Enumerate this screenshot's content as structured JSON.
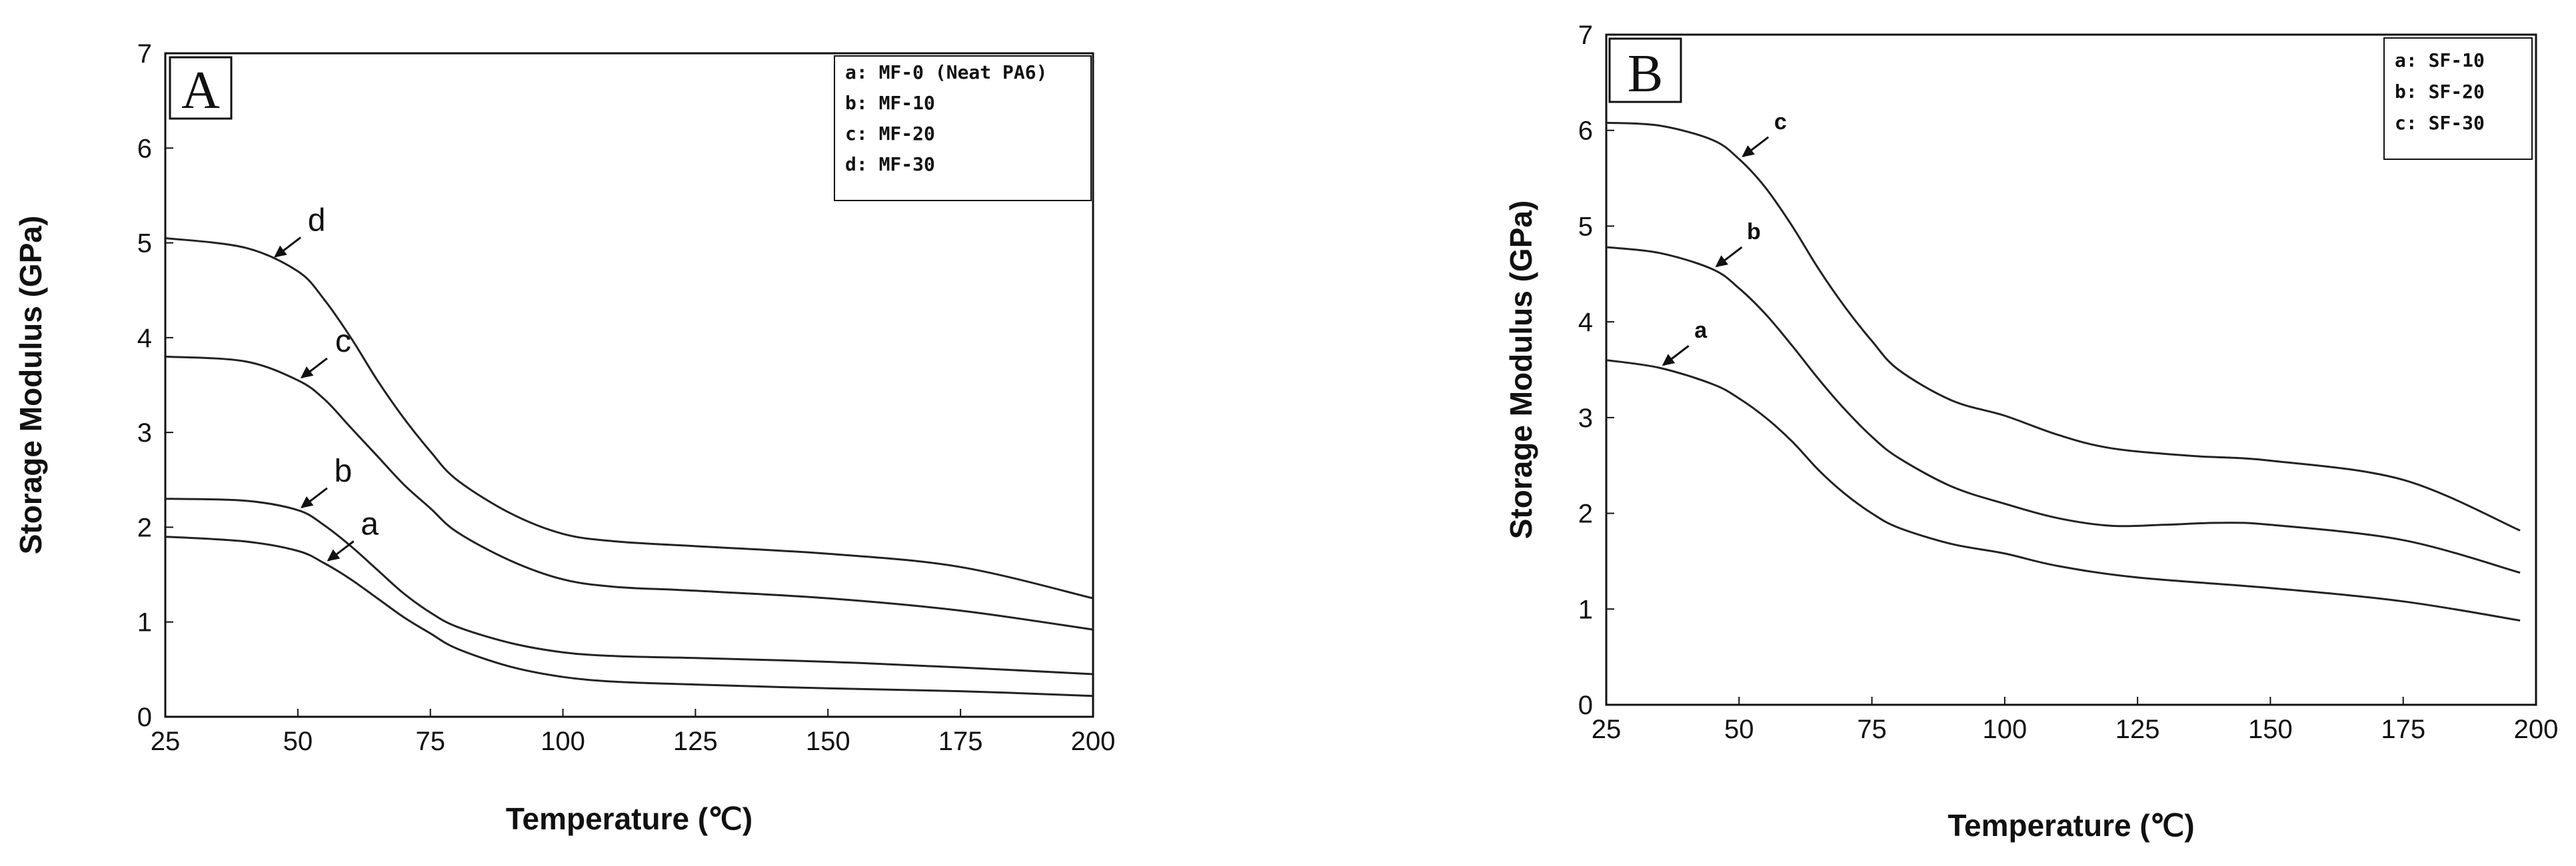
{
  "chart_data": [
    {
      "type": "line",
      "panel_label": "A",
      "xlabel": "Temperature (℃)",
      "ylabel": "Storage Modulus (GPa)",
      "xlim": [
        25,
        200
      ],
      "ylim": [
        0,
        7
      ],
      "xticks": [
        25,
        50,
        75,
        100,
        125,
        150,
        175,
        200
      ],
      "yticks": [
        0,
        1,
        2,
        3,
        4,
        5,
        6,
        7
      ],
      "legend": [
        "a: MF-0 (Neat PA6)",
        "b: MF-10",
        "c: MF-20",
        "d: MF-30"
      ],
      "legend_position": "top-right",
      "grid": false,
      "series": [
        {
          "name": "a",
          "x": [
            25,
            40,
            50,
            55,
            60,
            65,
            70,
            75,
            80,
            90,
            100,
            110,
            125,
            150,
            175,
            200
          ],
          "y": [
            1.9,
            1.85,
            1.75,
            1.62,
            1.45,
            1.25,
            1.05,
            0.88,
            0.72,
            0.53,
            0.42,
            0.37,
            0.34,
            0.3,
            0.27,
            0.22
          ]
        },
        {
          "name": "b",
          "x": [
            25,
            40,
            50,
            55,
            60,
            65,
            70,
            75,
            80,
            90,
            100,
            110,
            125,
            150,
            175,
            200
          ],
          "y": [
            2.3,
            2.28,
            2.18,
            2.02,
            1.8,
            1.55,
            1.3,
            1.1,
            0.95,
            0.78,
            0.68,
            0.64,
            0.62,
            0.58,
            0.52,
            0.45
          ]
        },
        {
          "name": "c",
          "x": [
            25,
            40,
            50,
            55,
            60,
            65,
            70,
            75,
            80,
            90,
            100,
            110,
            125,
            150,
            175,
            200
          ],
          "y": [
            3.8,
            3.75,
            3.55,
            3.35,
            3.05,
            2.75,
            2.45,
            2.2,
            1.95,
            1.65,
            1.45,
            1.37,
            1.33,
            1.25,
            1.12,
            0.92
          ]
        },
        {
          "name": "d",
          "x": [
            25,
            40,
            50,
            55,
            60,
            65,
            70,
            75,
            80,
            90,
            100,
            110,
            125,
            150,
            175,
            200
          ],
          "y": [
            5.05,
            4.95,
            4.7,
            4.4,
            4.0,
            3.55,
            3.15,
            2.8,
            2.5,
            2.15,
            1.93,
            1.85,
            1.8,
            1.72,
            1.58,
            1.25
          ]
        }
      ],
      "annotations": [
        {
          "text": "a",
          "series": "a",
          "at_x": 55
        },
        {
          "text": "b",
          "series": "b",
          "at_x": 50
        },
        {
          "text": "c",
          "series": "c",
          "at_x": 50
        },
        {
          "text": "d",
          "series": "d",
          "at_x": 45
        }
      ]
    },
    {
      "type": "line",
      "panel_label": "B",
      "xlabel": "Temperature (℃)",
      "ylabel": "Storage Modulus (GPa)",
      "xlim": [
        25,
        200
      ],
      "ylim": [
        0,
        7
      ],
      "xticks": [
        25,
        50,
        75,
        100,
        125,
        150,
        175,
        200
      ],
      "yticks": [
        0,
        1,
        2,
        3,
        4,
        5,
        6,
        7
      ],
      "legend": [
        "a: SF-10",
        "b: SF-20",
        "c: SF-30"
      ],
      "legend_position": "top-right",
      "grid": false,
      "series": [
        {
          "name": "a",
          "x": [
            25,
            35,
            45,
            50,
            55,
            60,
            65,
            70,
            75,
            80,
            90,
            100,
            110,
            125,
            150,
            175,
            197
          ],
          "y": [
            3.6,
            3.52,
            3.35,
            3.2,
            3.0,
            2.75,
            2.45,
            2.2,
            2.0,
            1.85,
            1.68,
            1.58,
            1.45,
            1.33,
            1.22,
            1.08,
            0.88
          ]
        },
        {
          "name": "b",
          "x": [
            25,
            35,
            45,
            50,
            55,
            60,
            65,
            70,
            75,
            80,
            90,
            100,
            110,
            120,
            130,
            140,
            150,
            175,
            197
          ],
          "y": [
            4.78,
            4.72,
            4.55,
            4.35,
            4.08,
            3.75,
            3.4,
            3.08,
            2.8,
            2.58,
            2.28,
            2.1,
            1.95,
            1.87,
            1.88,
            1.9,
            1.88,
            1.72,
            1.38
          ]
        },
        {
          "name": "c",
          "x": [
            25,
            35,
            45,
            50,
            55,
            60,
            65,
            70,
            75,
            80,
            90,
            100,
            110,
            120,
            135,
            150,
            175,
            197
          ],
          "y": [
            6.08,
            6.05,
            5.9,
            5.7,
            5.4,
            5.0,
            4.55,
            4.15,
            3.8,
            3.5,
            3.18,
            3.02,
            2.82,
            2.68,
            2.6,
            2.55,
            2.35,
            1.82
          ]
        }
      ],
      "annotations": [
        {
          "text": "a",
          "series": "a",
          "at_x": 35
        },
        {
          "text": "b",
          "series": "b",
          "at_x": 45
        },
        {
          "text": "c",
          "series": "c",
          "at_x": 50
        }
      ]
    }
  ]
}
